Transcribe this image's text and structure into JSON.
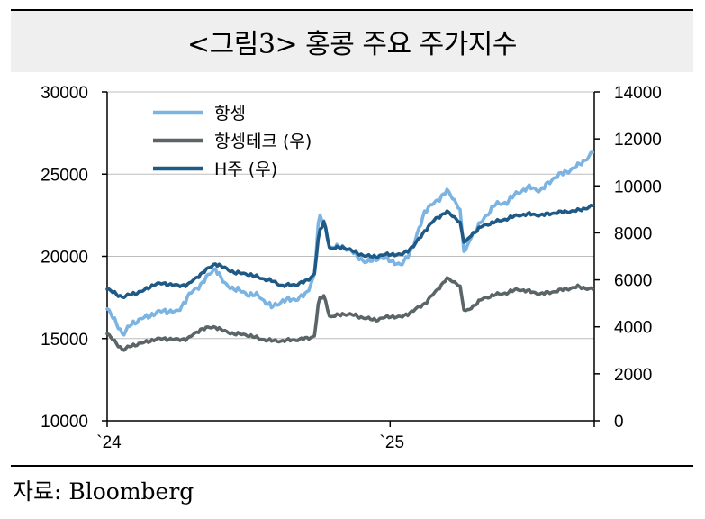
{
  "header": {
    "title": "<그림3> 홍콩 주요 주가지수"
  },
  "footer": {
    "source": "자료: Bloomberg"
  },
  "chart_data": {
    "type": "line",
    "title": "<그림3> 홍콩 주요 주가지수",
    "xlabel": "",
    "ylabel": "",
    "x_ticks": [
      "`24",
      "`25"
    ],
    "y_left": {
      "lim": [
        10000,
        30000
      ],
      "ticks": [
        "30000",
        "25000",
        "20000",
        "15000",
        "10000"
      ]
    },
    "y_right": {
      "lim": [
        0,
        14000
      ],
      "ticks": [
        "14000",
        "12000",
        "10000",
        "8000",
        "6000",
        "4000",
        "2000",
        "0"
      ]
    },
    "legend_position": "top-left",
    "grid": "horizontal",
    "series": [
      {
        "name": "항셍",
        "axis": "left",
        "color": "#7bb4e3",
        "x": [
          "2024-01-01",
          "2024-01-15",
          "2024-01-22",
          "2024-02-01",
          "2024-02-15",
          "2024-03-01",
          "2024-03-15",
          "2024-04-01",
          "2024-04-15",
          "2024-05-01",
          "2024-05-20",
          "2024-06-01",
          "2024-06-15",
          "2024-07-01",
          "2024-07-15",
          "2024-08-01",
          "2024-08-15",
          "2024-09-01",
          "2024-09-15",
          "2024-09-25",
          "2024-10-01",
          "2024-10-08",
          "2024-10-15",
          "2024-11-01",
          "2024-11-15",
          "2024-12-01",
          "2024-12-15",
          "2025-01-01",
          "2025-01-15",
          "2025-02-01",
          "2025-02-15",
          "2025-03-01",
          "2025-03-15",
          "2025-04-01",
          "2025-04-07",
          "2025-04-15",
          "2025-05-01",
          "2025-05-15",
          "2025-06-01",
          "2025-06-15",
          "2025-07-01",
          "2025-07-15",
          "2025-08-01",
          "2025-08-15",
          "2025-09-01",
          "2025-09-20"
        ],
        "values": [
          16800,
          15800,
          15200,
          15900,
          16200,
          16500,
          16700,
          16600,
          17600,
          18300,
          19300,
          18300,
          18000,
          17700,
          17600,
          16900,
          17300,
          17400,
          17700,
          18900,
          22500,
          22000,
          20500,
          20600,
          20200,
          19600,
          19900,
          19800,
          19400,
          20700,
          22800,
          23300,
          24000,
          23000,
          20000,
          21200,
          22200,
          23100,
          23300,
          23900,
          24200,
          24000,
          24800,
          25100,
          25500,
          26300
        ]
      },
      {
        "name": "항셍테크 (우)",
        "axis": "right",
        "color": "#5b6567",
        "x": [
          "2024-01-01",
          "2024-01-22",
          "2024-02-01",
          "2024-02-15",
          "2024-03-01",
          "2024-03-15",
          "2024-04-01",
          "2024-04-15",
          "2024-05-01",
          "2024-05-20",
          "2024-06-01",
          "2024-06-15",
          "2024-07-01",
          "2024-07-15",
          "2024-08-01",
          "2024-08-15",
          "2024-09-01",
          "2024-09-15",
          "2024-09-25",
          "2024-10-01",
          "2024-10-08",
          "2024-10-15",
          "2024-11-01",
          "2024-11-15",
          "2024-12-01",
          "2024-12-15",
          "2025-01-01",
          "2025-01-15",
          "2025-02-01",
          "2025-02-15",
          "2025-03-01",
          "2025-03-15",
          "2025-04-01",
          "2025-04-07",
          "2025-04-15",
          "2025-05-01",
          "2025-05-15",
          "2025-06-01",
          "2025-06-15",
          "2025-07-01",
          "2025-07-15",
          "2025-08-01",
          "2025-08-15",
          "2025-09-01",
          "2025-09-20"
        ],
        "values": [
          3700,
          3000,
          3200,
          3300,
          3450,
          3500,
          3450,
          3500,
          3900,
          4000,
          3800,
          3700,
          3650,
          3500,
          3400,
          3400,
          3450,
          3500,
          3600,
          5200,
          5300,
          4400,
          4550,
          4500,
          4350,
          4300,
          4450,
          4400,
          4700,
          5000,
          5500,
          6050,
          5800,
          4600,
          4800,
          5200,
          5350,
          5450,
          5600,
          5500,
          5400,
          5500,
          5600,
          5700,
          5600
        ]
      },
      {
        "name": "H주 (우)",
        "axis": "right",
        "color": "#1f5a86",
        "x": [
          "2024-01-01",
          "2024-01-22",
          "2024-02-01",
          "2024-02-15",
          "2024-03-01",
          "2024-03-15",
          "2024-04-01",
          "2024-04-15",
          "2024-05-01",
          "2024-05-20",
          "2024-06-01",
          "2024-06-15",
          "2024-07-01",
          "2024-07-15",
          "2024-08-01",
          "2024-08-15",
          "2024-09-01",
          "2024-09-15",
          "2024-09-25",
          "2024-10-01",
          "2024-10-08",
          "2024-10-15",
          "2024-11-01",
          "2024-11-15",
          "2024-12-01",
          "2024-12-15",
          "2025-01-01",
          "2025-01-15",
          "2025-02-01",
          "2025-02-15",
          "2025-03-01",
          "2025-03-15",
          "2025-04-01",
          "2025-04-07",
          "2025-04-15",
          "2025-05-01",
          "2025-05-15",
          "2025-06-01",
          "2025-06-15",
          "2025-07-01",
          "2025-07-15",
          "2025-08-01",
          "2025-08-15",
          "2025-09-01",
          "2025-09-20"
        ],
        "values": [
          5600,
          5250,
          5400,
          5500,
          5800,
          5850,
          5750,
          5800,
          6250,
          6700,
          6500,
          6300,
          6250,
          6100,
          5950,
          5750,
          5800,
          5950,
          6250,
          8000,
          8500,
          7300,
          7400,
          7200,
          7000,
          7000,
          7100,
          7050,
          7450,
          8100,
          8600,
          8900,
          8500,
          7500,
          7900,
          8300,
          8450,
          8600,
          8750,
          8800,
          8750,
          8850,
          8900,
          8950,
          9150
        ]
      }
    ]
  }
}
